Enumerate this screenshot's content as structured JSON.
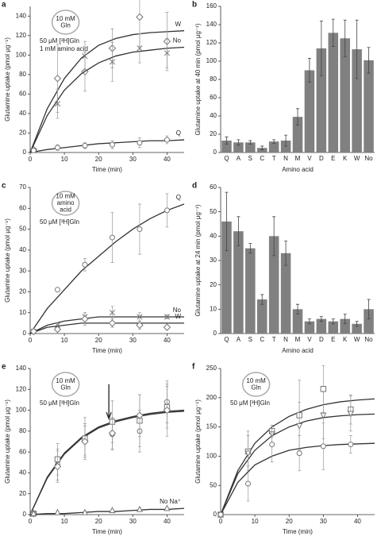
{
  "chart_data": [
    {
      "type": "scatter",
      "label": "a",
      "xlabel": "Time (min)",
      "ylabel": "Glutamine uptake (pmol μg⁻¹)",
      "xlim": [
        0,
        45
      ],
      "xticks": [
        0,
        10,
        20,
        30,
        40
      ],
      "ylim": [
        0,
        150
      ],
      "yticks": [
        0,
        20,
        40,
        60,
        80,
        100,
        120,
        140
      ],
      "circle_label": [
        "10 mM",
        "Gln"
      ],
      "notes": [
        "50 μM [³H]Gln",
        "1 mM amino acid"
      ],
      "x": [
        1,
        8,
        16,
        24,
        32,
        40
      ],
      "fit_x": [
        0,
        5,
        10,
        15,
        20,
        25,
        30,
        35,
        40,
        45
      ],
      "series": [
        {
          "name": "W",
          "marker": "diamond",
          "color": "#777777",
          "values": [
            3,
            76,
            83,
            107,
            139,
            114
          ],
          "errors": [
            2,
            35,
            20,
            20,
            30,
            30
          ],
          "fit": [
            0,
            45,
            76,
            97,
            110,
            117,
            121,
            123,
            124,
            125
          ]
        },
        {
          "name": "No",
          "marker": "cross",
          "color": "#777777",
          "values": [
            2,
            50,
            99,
            93,
            107,
            102
          ],
          "errors": [
            2,
            15,
            15,
            20,
            15,
            15
          ],
          "fit": [
            0,
            38,
            64,
            81,
            92,
            99,
            103,
            105,
            107,
            108
          ]
        },
        {
          "name": "Q",
          "marker": "circle",
          "color": "#777777",
          "values": [
            2,
            5,
            7,
            8,
            10,
            13
          ],
          "errors": [
            1,
            3,
            3,
            4,
            5,
            4
          ],
          "fit": [
            0,
            3,
            5,
            7,
            9,
            10,
            11,
            12,
            12,
            13
          ]
        }
      ]
    },
    {
      "type": "bar",
      "label": "b",
      "xlabel": "Amino acid",
      "ylabel": "Glutamine uptake at 40 min (pmol μg⁻¹)",
      "ylim": [
        0,
        160
      ],
      "yticks": [
        0,
        20,
        40,
        60,
        80,
        100,
        120,
        140,
        160
      ],
      "color": "#808080",
      "categories": [
        "Q",
        "A",
        "S",
        "C",
        "T",
        "N",
        "M",
        "V",
        "D",
        "E",
        "K",
        "W",
        "No"
      ],
      "values": [
        13,
        11,
        11,
        5,
        12,
        13,
        39,
        90,
        114,
        131,
        125,
        113,
        101
      ],
      "errors": [
        4,
        3,
        2,
        2,
        2,
        6,
        9,
        13,
        30,
        15,
        20,
        32,
        14
      ]
    },
    {
      "type": "scatter",
      "label": "c",
      "xlabel": "Time (min)",
      "ylabel": "Glutamine uptake (pmol μg⁻¹)",
      "xlim": [
        0,
        45
      ],
      "xticks": [
        0,
        10,
        20,
        30,
        40
      ],
      "ylim": [
        0,
        70
      ],
      "yticks": [
        0,
        10,
        20,
        30,
        40,
        50,
        60,
        70
      ],
      "circle_label": [
        "10 mM",
        "amino",
        "acid"
      ],
      "notes": [
        "50 μM [³H]Gln"
      ],
      "x": [
        1,
        8,
        16,
        24,
        32,
        40
      ],
      "fit_x": [
        0,
        5,
        10,
        15,
        20,
        25,
        30,
        35,
        40,
        45
      ],
      "series": [
        {
          "name": "Q",
          "marker": "circle",
          "color": "#777777",
          "values": [
            1,
            21,
            33,
            46,
            50,
            59
          ],
          "errors": [
            1,
            1,
            3,
            12,
            12,
            8
          ],
          "fit": [
            0,
            12,
            21,
            30,
            37,
            44,
            50,
            55,
            59,
            62
          ]
        },
        {
          "name": "No",
          "marker": "cross",
          "color": "#777777",
          "values": [
            1,
            4,
            8,
            10,
            8,
            8
          ],
          "errors": [
            1,
            1,
            2,
            3,
            2,
            1
          ],
          "fit": [
            0,
            4,
            6,
            7,
            8,
            8,
            8,
            8,
            8,
            8
          ]
        },
        {
          "name": "W",
          "marker": "diamond",
          "color": "#777777",
          "values": [
            1,
            2,
            7,
            5,
            4,
            3
          ],
          "errors": [
            1,
            1,
            3,
            2,
            2,
            1
          ],
          "fit": [
            0,
            3,
            4,
            5,
            5,
            5,
            5,
            5,
            5,
            5
          ]
        }
      ]
    },
    {
      "type": "bar",
      "label": "d",
      "xlabel": "Amino acid",
      "ylabel": "Glutamine uptake at 24 min (pmol μg⁻¹)",
      "ylim": [
        0,
        60
      ],
      "yticks": [
        0,
        10,
        20,
        30,
        40,
        50,
        60
      ],
      "color": "#808080",
      "categories": [
        "Q",
        "A",
        "S",
        "C",
        "T",
        "N",
        "M",
        "V",
        "D",
        "E",
        "K",
        "W",
        "No"
      ],
      "values": [
        46,
        42,
        35,
        14,
        40,
        33,
        10,
        5,
        6,
        5,
        6,
        4,
        10
      ],
      "errors": [
        12,
        6,
        2,
        2,
        8,
        5,
        2,
        1,
        1,
        1,
        2,
        1,
        4
      ]
    },
    {
      "type": "scatter",
      "label": "e",
      "xlabel": "Time (min)",
      "ylabel": "Glutamine uptake (pmol μg⁻¹)",
      "xlim": [
        0,
        45
      ],
      "xticks": [
        0,
        10,
        20,
        30,
        40
      ],
      "ylim": [
        0,
        140
      ],
      "yticks": [
        0,
        20,
        40,
        60,
        80,
        100,
        120,
        140
      ],
      "circle_label": [
        "10 mM",
        "Gln"
      ],
      "notes": [
        "50 μM [³H]Gln"
      ],
      "x": [
        1,
        8,
        16,
        24,
        32,
        40
      ],
      "fit_x": [
        0,
        5,
        10,
        15,
        20,
        25,
        30,
        35,
        40,
        45
      ],
      "series": [
        {
          "marker": "circle",
          "color": "#777777",
          "values": [
            1,
            48,
            72,
            77,
            80,
            108
          ],
          "errors": [
            1,
            15,
            15,
            15,
            20,
            20
          ],
          "fit": [
            0,
            35,
            58,
            73,
            83,
            89,
            93,
            96,
            98,
            99
          ]
        },
        {
          "marker": "square",
          "color": "#777777",
          "values": [
            1,
            53,
            73,
            89,
            90,
            103
          ],
          "errors": [
            1,
            15,
            20,
            20,
            25,
            20
          ],
          "fit": [
            0,
            36,
            59,
            74,
            84,
            90,
            94,
            97,
            99,
            100
          ]
        },
        {
          "marker": "diamond",
          "color": "#777777",
          "values": [
            1,
            46,
            70,
            78,
            95,
            100
          ],
          "errors": [
            1,
            15,
            15,
            15,
            20,
            25
          ]
        },
        {
          "name": "No Na⁺",
          "marker": "triangle",
          "color": "#777777",
          "values": [
            1,
            2,
            2,
            4,
            5,
            6
          ],
          "errors": [
            1,
            1,
            1,
            1,
            1,
            1
          ],
          "fit": [
            0,
            1,
            1,
            2,
            3,
            3,
            4,
            5,
            5,
            6
          ]
        }
      ]
    },
    {
      "type": "scatter",
      "label": "f",
      "xlabel": "Time (min)",
      "ylabel": "Glutamine uptake (pmol μg⁻¹)",
      "xlim": [
        0,
        45
      ],
      "xticks": [
        0,
        10,
        20,
        30,
        40
      ],
      "ylim": [
        0,
        250
      ],
      "yticks": [
        0,
        50,
        100,
        150,
        200,
        250
      ],
      "circle_label": [
        "10 mM",
        "Gln"
      ],
      "notes": [
        "50 μM [³H]Gln"
      ],
      "x": [
        0,
        8,
        15,
        23,
        30,
        38
      ],
      "fit_x": [
        0,
        5,
        10,
        15,
        20,
        25,
        30,
        35,
        40,
        45
      ],
      "series": [
        {
          "marker": "square",
          "color": "#777777",
          "values": [
            0,
            108,
            143,
            170,
            215,
            180
          ],
          "errors": [
            0,
            35,
            10,
            60,
            40,
            25
          ],
          "fit": [
            0,
            75,
            122,
            150,
            168,
            180,
            188,
            193,
            196,
            198
          ]
        },
        {
          "marker": "triangle-down",
          "color": "#777777",
          "values": [
            0,
            105,
            138,
            152,
            170,
            173
          ],
          "errors": [
            0,
            30,
            15,
            40,
            40,
            30
          ],
          "fit": [
            0,
            70,
            110,
            135,
            150,
            160,
            166,
            169,
            171,
            172
          ]
        },
        {
          "marker": "circle",
          "color": "#777777",
          "values": [
            0,
            53,
            120,
            105,
            117,
            120
          ],
          "errors": [
            0,
            30,
            30,
            30,
            40,
            15
          ],
          "fit": [
            0,
            55,
            85,
            100,
            110,
            115,
            118,
            120,
            121,
            122
          ]
        }
      ]
    }
  ]
}
